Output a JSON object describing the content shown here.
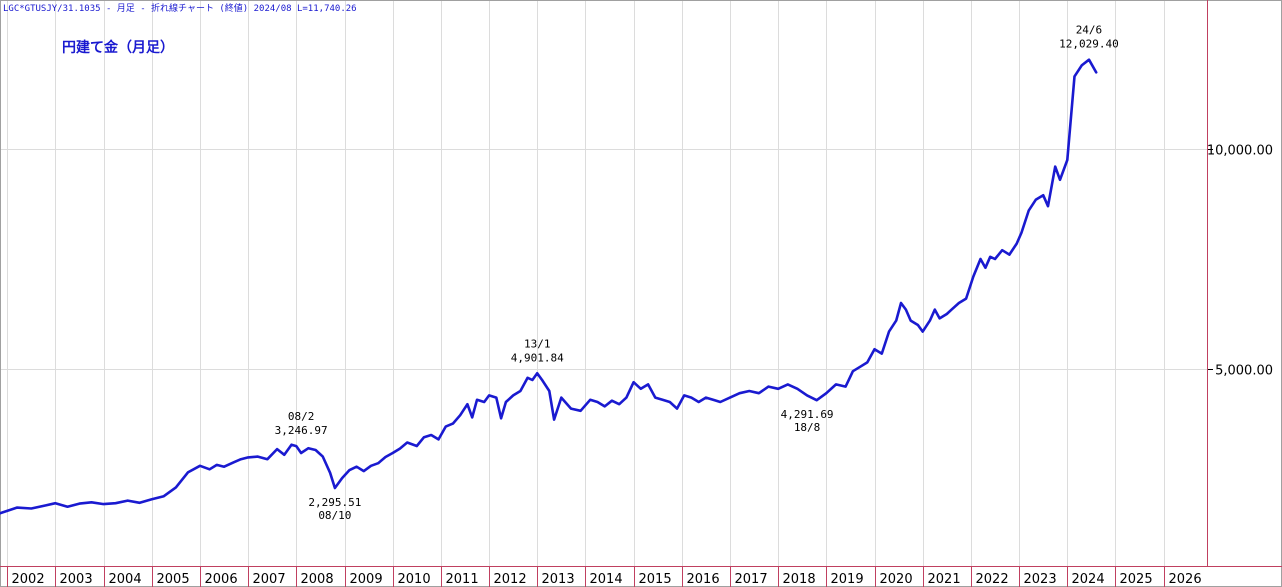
{
  "header": {
    "info": "LGC*GTUSJY/31.1035 - 月足 - 折れ線チャート (終値) 2024/08 L=11,740.26"
  },
  "colors": {
    "line": "#1a1ad0",
    "grid": "#dcdcdc",
    "border": "#c04060",
    "title": "#1a1ad0",
    "text": "#000000"
  },
  "chart_data": {
    "type": "line",
    "title": "円建て金（月足）",
    "xlabel": "",
    "ylabel": "",
    "x_start": 2001.85,
    "x_end": 2026.9,
    "ylim": [
      1000,
      13000
    ],
    "grid": true,
    "y_ticks": [
      {
        "value": 10000,
        "label": "10,000.00"
      },
      {
        "value": 5000,
        "label": "5,000.00"
      }
    ],
    "x_ticks": [
      "2002",
      "2003",
      "2004",
      "2005",
      "2006",
      "2007",
      "2008",
      "2009",
      "2010",
      "2011",
      "2012",
      "2013",
      "2014",
      "2015",
      "2016",
      "2017",
      "2018",
      "2019",
      "2020",
      "2021",
      "2022",
      "2023",
      "2024",
      "2025",
      "2026"
    ],
    "series": [
      {
        "name": "",
        "x": [
          2001.85,
          2002.2,
          2002.5,
          2002.8,
          2003.0,
          2003.25,
          2003.5,
          2003.75,
          2004.0,
          2004.25,
          2004.5,
          2004.75,
          2005.0,
          2005.25,
          2005.5,
          2005.75,
          2006.0,
          2006.2,
          2006.35,
          2006.5,
          2006.7,
          2006.85,
          2007.0,
          2007.2,
          2007.4,
          2007.6,
          2007.75,
          2007.9,
          2008.0,
          2008.1,
          2008.25,
          2008.4,
          2008.55,
          2008.7,
          2008.8,
          2008.95,
          2009.1,
          2009.25,
          2009.4,
          2009.55,
          2009.7,
          2009.85,
          2010.0,
          2010.15,
          2010.3,
          2010.5,
          2010.65,
          2010.8,
          2010.95,
          2011.1,
          2011.25,
          2011.4,
          2011.55,
          2011.65,
          2011.75,
          2011.9,
          2012.0,
          2012.15,
          2012.25,
          2012.35,
          2012.5,
          2012.65,
          2012.8,
          2012.9,
          2013.0,
          2013.1,
          2013.25,
          2013.35,
          2013.5,
          2013.7,
          2013.9,
          2014.1,
          2014.25,
          2014.4,
          2014.55,
          2014.7,
          2014.85,
          2015.0,
          2015.15,
          2015.3,
          2015.45,
          2015.6,
          2015.75,
          2015.9,
          2016.05,
          2016.2,
          2016.35,
          2016.5,
          2016.65,
          2016.8,
          2017.0,
          2017.2,
          2017.4,
          2017.6,
          2017.8,
          2018.0,
          2018.2,
          2018.4,
          2018.6,
          2018.8,
          2019.0,
          2019.2,
          2019.4,
          2019.55,
          2019.7,
          2019.85,
          2020.0,
          2020.15,
          2020.3,
          2020.45,
          2020.55,
          2020.65,
          2020.75,
          2020.9,
          2021.0,
          2021.15,
          2021.25,
          2021.35,
          2021.5,
          2021.6,
          2021.75,
          2021.9,
          2022.05,
          2022.2,
          2022.3,
          2022.4,
          2022.5,
          2022.65,
          2022.8,
          2022.95,
          2023.05,
          2023.2,
          2023.35,
          2023.5,
          2023.6,
          2023.75,
          2023.85,
          2024.0,
          2024.15,
          2024.3,
          2024.45,
          2024.6
        ],
        "values": [
          1720,
          1850,
          1830,
          1900,
          1950,
          1870,
          1940,
          1970,
          1930,
          1950,
          2010,
          1960,
          2040,
          2110,
          2310,
          2650,
          2800,
          2720,
          2820,
          2780,
          2880,
          2950,
          2990,
          3010,
          2950,
          3180,
          3050,
          3280,
          3247,
          3090,
          3200,
          3160,
          3010,
          2640,
          2296,
          2520,
          2700,
          2780,
          2680,
          2800,
          2860,
          3000,
          3090,
          3190,
          3330,
          3250,
          3450,
          3500,
          3400,
          3690,
          3760,
          3950,
          4200,
          3900,
          4300,
          4250,
          4400,
          4350,
          3880,
          4250,
          4400,
          4500,
          4800,
          4750,
          4902,
          4750,
          4500,
          3850,
          4350,
          4100,
          4050,
          4300,
          4250,
          4150,
          4280,
          4200,
          4350,
          4700,
          4550,
          4650,
          4350,
          4300,
          4250,
          4100,
          4400,
          4350,
          4250,
          4350,
          4300,
          4250,
          4350,
          4450,
          4500,
          4450,
          4600,
          4550,
          4650,
          4550,
          4400,
          4292,
          4450,
          4650,
          4600,
          4950,
          5050,
          5150,
          5450,
          5350,
          5850,
          6100,
          6500,
          6350,
          6100,
          6000,
          5850,
          6100,
          6350,
          6150,
          6250,
          6350,
          6500,
          6600,
          7100,
          7500,
          7300,
          7550,
          7500,
          7700,
          7600,
          7850,
          8100,
          8600,
          8850,
          8950,
          8700,
          9600,
          9300,
          9750,
          11650,
          11900,
          12029,
          11740
        ]
      }
    ],
    "annotations": [
      {
        "x": 2008.1,
        "value": 3247,
        "date": "08/2",
        "price": "3,246.97",
        "pos": "above"
      },
      {
        "x": 2008.8,
        "value": 2296,
        "date": "08/10",
        "price": "2,295.51",
        "pos": "below"
      },
      {
        "x": 2013.0,
        "value": 4902,
        "date": "13/1",
        "price": "4,901.84",
        "pos": "above"
      },
      {
        "x": 2018.6,
        "value": 4292,
        "date": "18/8",
        "price": "4,291.69",
        "pos": "below"
      },
      {
        "x": 2024.45,
        "value": 12029,
        "date": "24/6",
        "price": "12,029.40",
        "pos": "above"
      }
    ]
  }
}
